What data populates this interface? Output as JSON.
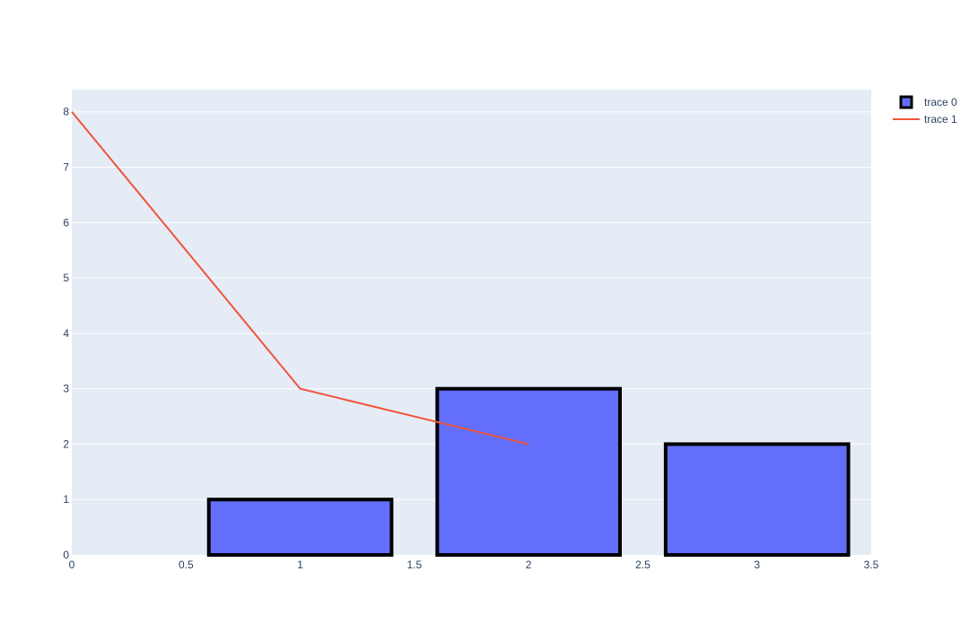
{
  "chart_data": {
    "type": "bar",
    "xlim": [
      0,
      3.5
    ],
    "ylim": [
      0,
      8.4
    ],
    "x_ticks": [
      0,
      0.5,
      1,
      1.5,
      2,
      2.5,
      3,
      3.5
    ],
    "y_ticks": [
      0,
      1,
      2,
      3,
      4,
      5,
      6,
      7,
      8
    ],
    "grid": true,
    "legend_position": "top-right",
    "series": [
      {
        "name": "trace 0",
        "type": "bar",
        "x": [
          1,
          2,
          3
        ],
        "values": [
          1,
          3,
          2
        ],
        "bar_width": 0.8,
        "color": "#636efa",
        "outline_color": "#000000"
      },
      {
        "name": "trace 1",
        "type": "line",
        "x": [
          0,
          1,
          2
        ],
        "values": [
          8,
          3,
          2
        ],
        "color": "#EF553B"
      }
    ],
    "colors": {
      "plot_background": "#e5ecf6",
      "grid": "#ffffff",
      "text": "#2a3f5f"
    }
  }
}
